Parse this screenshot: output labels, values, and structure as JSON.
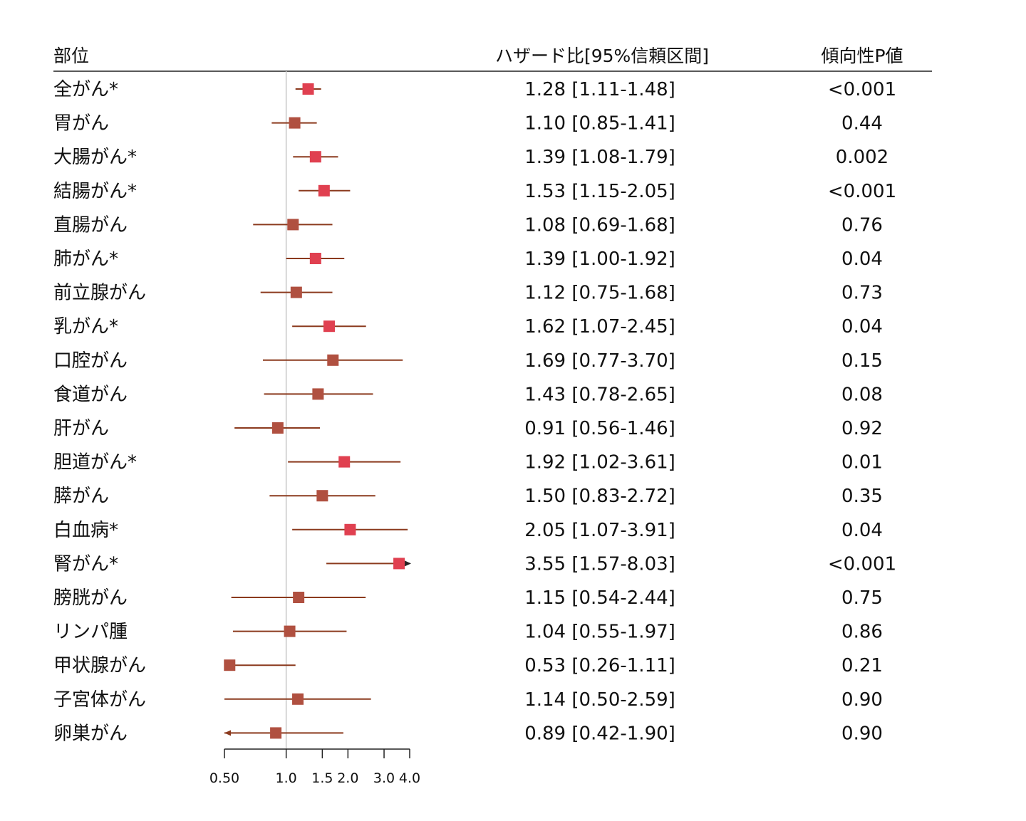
{
  "headers": {
    "site": "部位",
    "hr": "ハザード比[95%信頼区間]",
    "trend": "傾向性P値"
  },
  "chart_data": {
    "type": "forest",
    "x_scale": "log",
    "xlim": [
      0.5,
      4.0
    ],
    "reference_line": 1.0,
    "x_ticks": [
      {
        "value": 0.5,
        "label": "0.50"
      },
      {
        "value": 1.0,
        "label": "1.0"
      },
      {
        "value": 1.5,
        "label": "1.5"
      },
      {
        "value": 2.0,
        "label": "2.0"
      },
      {
        "value": 3.0,
        "label": "3.0"
      },
      {
        "value": 4.0,
        "label": "4.0"
      }
    ],
    "colors": {
      "significant": "#e04050",
      "nonsignificant": "#b05040",
      "ci_line": "#8b3a1e",
      "reference": "#c8c8c8",
      "axis": "#222222"
    },
    "rows": [
      {
        "site": "全がん*",
        "hr": 1.28,
        "lo": 1.11,
        "hi": 1.48,
        "hr_text": "1.28 [1.11-1.48]",
        "p": "<0.001",
        "significant": true
      },
      {
        "site": "胃がん",
        "hr": 1.1,
        "lo": 0.85,
        "hi": 1.41,
        "hr_text": "1.10 [0.85-1.41]",
        "p": "0.44",
        "significant": false
      },
      {
        "site": "大腸がん*",
        "hr": 1.39,
        "lo": 1.08,
        "hi": 1.79,
        "hr_text": "1.39 [1.08-1.79]",
        "p": "0.002",
        "significant": true
      },
      {
        "site": "結腸がん*",
        "hr": 1.53,
        "lo": 1.15,
        "hi": 2.05,
        "hr_text": "1.53 [1.15-2.05]",
        "p": "<0.001",
        "significant": true
      },
      {
        "site": "直腸がん",
        "hr": 1.08,
        "lo": 0.69,
        "hi": 1.68,
        "hr_text": "1.08 [0.69-1.68]",
        "p": "0.76",
        "significant": false
      },
      {
        "site": "肺がん*",
        "hr": 1.39,
        "lo": 1.0,
        "hi": 1.92,
        "hr_text": "1.39 [1.00-1.92]",
        "p": "0.04",
        "significant": true
      },
      {
        "site": "前立腺がん",
        "hr": 1.12,
        "lo": 0.75,
        "hi": 1.68,
        "hr_text": "1.12 [0.75-1.68]",
        "p": "0.73",
        "significant": false
      },
      {
        "site": "乳がん*",
        "hr": 1.62,
        "lo": 1.07,
        "hi": 2.45,
        "hr_text": "1.62 [1.07-2.45]",
        "p": "0.04",
        "significant": true
      },
      {
        "site": "口腔がん",
        "hr": 1.69,
        "lo": 0.77,
        "hi": 3.7,
        "hr_text": "1.69 [0.77-3.70]",
        "p": "0.15",
        "significant": false
      },
      {
        "site": "食道がん",
        "hr": 1.43,
        "lo": 0.78,
        "hi": 2.65,
        "hr_text": "1.43 [0.78-2.65]",
        "p": "0.08",
        "significant": false
      },
      {
        "site": "肝がん",
        "hr": 0.91,
        "lo": 0.56,
        "hi": 1.46,
        "hr_text": "0.91 [0.56-1.46]",
        "p": "0.92",
        "significant": false
      },
      {
        "site": "胆道がん*",
        "hr": 1.92,
        "lo": 1.02,
        "hi": 3.61,
        "hr_text": "1.92 [1.02-3.61]",
        "p": "0.01",
        "significant": true
      },
      {
        "site": "膵がん",
        "hr": 1.5,
        "lo": 0.83,
        "hi": 2.72,
        "hr_text": "1.50 [0.83-2.72]",
        "p": "0.35",
        "significant": false
      },
      {
        "site": "白血病*",
        "hr": 2.05,
        "lo": 1.07,
        "hi": 3.91,
        "hr_text": "2.05 [1.07-3.91]",
        "p": "0.04",
        "significant": true
      },
      {
        "site": "腎がん*",
        "hr": 3.55,
        "lo": 1.57,
        "hi": 8.03,
        "hr_text": "3.55 [1.57-8.03]",
        "p": "<0.001",
        "significant": true
      },
      {
        "site": "膀胱がん",
        "hr": 1.15,
        "lo": 0.54,
        "hi": 2.44,
        "hr_text": "1.15 [0.54-2.44]",
        "p": "0.75",
        "significant": false
      },
      {
        "site": "リンパ腫",
        "hr": 1.04,
        "lo": 0.55,
        "hi": 1.97,
        "hr_text": "1.04 [0.55-1.97]",
        "p": "0.86",
        "significant": false
      },
      {
        "site": "甲状腺がん",
        "hr": 0.53,
        "lo": 0.26,
        "hi": 1.11,
        "hr_text": "0.53 [0.26-1.11]",
        "p": "0.21",
        "significant": false
      },
      {
        "site": "子宮体がん",
        "hr": 1.14,
        "lo": 0.5,
        "hi": 2.59,
        "hr_text": "1.14 [0.50-2.59]",
        "p": "0.90",
        "significant": false
      },
      {
        "site": "卵巣がん",
        "hr": 0.89,
        "lo": 0.42,
        "hi": 1.9,
        "hr_text": "0.89 [0.42-1.90]",
        "p": "0.90",
        "significant": false
      }
    ]
  }
}
